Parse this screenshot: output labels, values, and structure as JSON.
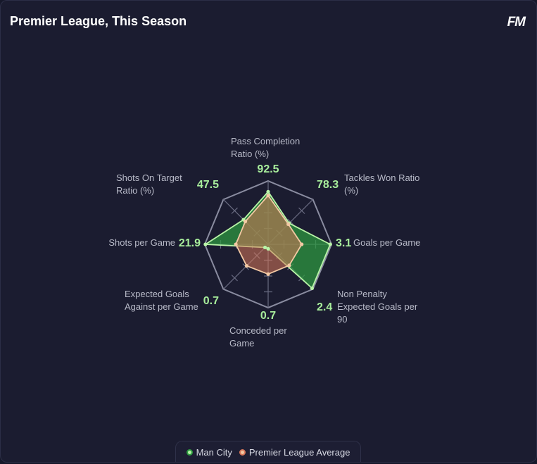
{
  "header": {
    "title": "Premier League, This Season",
    "logo": "FM"
  },
  "chart_data": {
    "type": "radar",
    "axes": [
      {
        "label_lines": [
          "Pass Completion",
          "Ratio (%)"
        ],
        "value_label": "92.5"
      },
      {
        "label_lines": [
          "Tackles Won Ratio",
          "(%)"
        ],
        "value_label": "78.3"
      },
      {
        "label_lines": [
          "Goals per Game"
        ],
        "value_label": "3.1"
      },
      {
        "label_lines": [
          "Non Penalty",
          "Expected Goals per",
          "90"
        ],
        "value_label": "2.4"
      },
      {
        "label_lines": [
          "Conceded per",
          "Game"
        ],
        "value_label": "0.7"
      },
      {
        "label_lines": [
          "Expected Goals",
          "Against per Game"
        ],
        "value_label": "0.7"
      },
      {
        "label_lines": [
          "Shots per Game"
        ],
        "value_label": "21.9"
      },
      {
        "label_lines": [
          "Shots On Target",
          "Ratio (%)"
        ],
        "value_label": "47.5"
      }
    ],
    "series": [
      {
        "name": "Man City",
        "color": "#2e9b40",
        "stroke": "#b9f5a8",
        "normalized": [
          0.83,
          0.47,
          0.98,
          0.98,
          0.07,
          0.07,
          0.99,
          0.55
        ]
      },
      {
        "name": "Premier League Average",
        "color": "#d9785a",
        "stroke": "#f3c9a4",
        "normalized": [
          0.77,
          0.45,
          0.53,
          0.47,
          0.47,
          0.48,
          0.51,
          0.51
        ]
      }
    ],
    "rings": 4,
    "legend_position": "bottom"
  },
  "legend": {
    "items": [
      {
        "label": "Man City",
        "color": "#b9f5a8"
      },
      {
        "label": "Premier League Average",
        "color": "#f3c9a4"
      }
    ]
  }
}
